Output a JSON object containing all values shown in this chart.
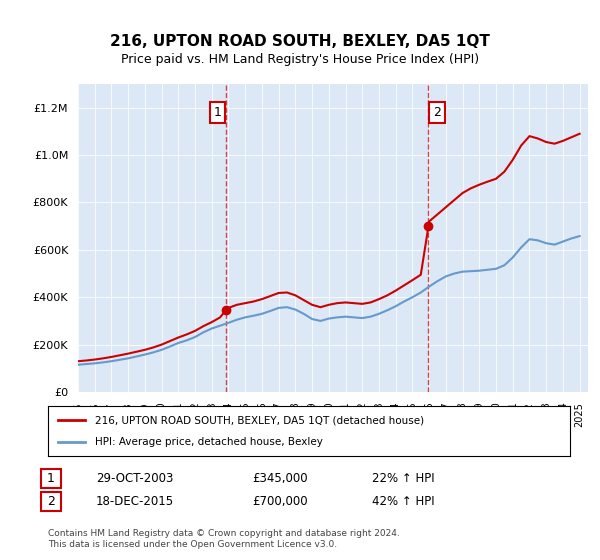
{
  "title": "216, UPTON ROAD SOUTH, BEXLEY, DA5 1QT",
  "subtitle": "Price paid vs. HM Land Registry's House Price Index (HPI)",
  "background_color": "#e8f0f8",
  "plot_bg_color": "#dce8f5",
  "legend_line1": "216, UPTON ROAD SOUTH, BEXLEY, DA5 1QT (detached house)",
  "legend_line2": "HPI: Average price, detached house, Bexley",
  "annotation1_label": "1",
  "annotation1_date": "29-OCT-2003",
  "annotation1_price": "£345,000",
  "annotation1_hpi": "22% ↑ HPI",
  "annotation2_label": "2",
  "annotation2_date": "18-DEC-2015",
  "annotation2_price": "£700,000",
  "annotation2_hpi": "42% ↑ HPI",
  "footer": "Contains HM Land Registry data © Crown copyright and database right 2024.\nThis data is licensed under the Open Government Licence v3.0.",
  "red_color": "#cc0000",
  "blue_color": "#6699cc",
  "ylim": [
    0,
    1300000
  ],
  "yticks": [
    0,
    200000,
    400000,
    600000,
    800000,
    1000000,
    1200000
  ],
  "hpi_x": [
    1995,
    1995.5,
    1996,
    1996.5,
    1997,
    1997.5,
    1998,
    1998.5,
    1999,
    1999.5,
    2000,
    2000.5,
    2001,
    2001.5,
    2002,
    2002.5,
    2003,
    2003.5,
    2004,
    2004.5,
    2005,
    2005.5,
    2006,
    2006.5,
    2007,
    2007.5,
    2008,
    2008.5,
    2009,
    2009.5,
    2010,
    2010.5,
    2011,
    2011.5,
    2012,
    2012.5,
    2013,
    2013.5,
    2014,
    2014.5,
    2015,
    2015.5,
    2016,
    2016.5,
    2017,
    2017.5,
    2018,
    2018.5,
    2019,
    2019.5,
    2020,
    2020.5,
    2021,
    2021.5,
    2022,
    2022.5,
    2023,
    2023.5,
    2024,
    2024.5,
    2025
  ],
  "hpi_y": [
    115000,
    118000,
    121000,
    125000,
    130000,
    136000,
    142000,
    150000,
    158000,
    167000,
    178000,
    192000,
    207000,
    218000,
    232000,
    252000,
    268000,
    280000,
    292000,
    305000,
    315000,
    322000,
    330000,
    342000,
    355000,
    358000,
    348000,
    330000,
    308000,
    300000,
    310000,
    315000,
    318000,
    315000,
    312000,
    318000,
    330000,
    345000,
    362000,
    382000,
    400000,
    420000,
    445000,
    468000,
    488000,
    500000,
    508000,
    510000,
    512000,
    516000,
    520000,
    535000,
    568000,
    610000,
    645000,
    640000,
    628000,
    622000,
    635000,
    648000,
    658000
  ],
  "price_x": [
    1995,
    1995.5,
    1996,
    1996.5,
    1997,
    1997.5,
    1998,
    1998.5,
    1999,
    1999.5,
    2000,
    2000.5,
    2001,
    2001.5,
    2002,
    2002.5,
    2003,
    2003.5,
    2003.83,
    2004,
    2004.5,
    2005,
    2005.5,
    2006,
    2006.5,
    2007,
    2007.5,
    2008,
    2008.5,
    2009,
    2009.5,
    2010,
    2010.5,
    2011,
    2011.5,
    2012,
    2012.5,
    2013,
    2013.5,
    2014,
    2014.5,
    2015,
    2015.5,
    2015.96,
    2016,
    2016.5,
    2017,
    2017.5,
    2018,
    2018.5,
    2019,
    2019.5,
    2020,
    2020.5,
    2021,
    2021.5,
    2022,
    2022.5,
    2023,
    2023.5,
    2024,
    2024.5,
    2025
  ],
  "price_y": [
    130000,
    133000,
    137000,
    142000,
    148000,
    155000,
    162000,
    170000,
    178000,
    188000,
    200000,
    215000,
    230000,
    243000,
    258000,
    278000,
    295000,
    315000,
    345000,
    355000,
    368000,
    375000,
    382000,
    392000,
    405000,
    418000,
    420000,
    408000,
    388000,
    368000,
    358000,
    368000,
    375000,
    378000,
    375000,
    372000,
    378000,
    392000,
    408000,
    428000,
    450000,
    472000,
    495000,
    700000,
    720000,
    750000,
    780000,
    810000,
    840000,
    860000,
    875000,
    888000,
    900000,
    930000,
    980000,
    1040000,
    1080000,
    1070000,
    1055000,
    1048000,
    1060000,
    1075000,
    1090000
  ],
  "ann1_x": 2003.83,
  "ann1_y": 345000,
  "ann2_x": 2015.96,
  "ann2_y": 700000,
  "xmin": 1995,
  "xmax": 2025.5
}
